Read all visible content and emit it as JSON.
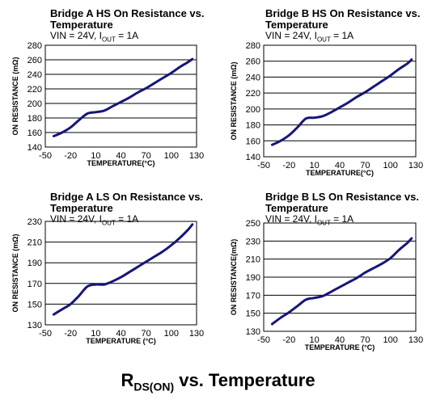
{
  "caption": {
    "main": "R",
    "sub": "DS(ON)",
    "rest": " vs. Temperature"
  },
  "condition": {
    "prefix": "VIN = 24V, I",
    "sub": "OUT",
    "suffix": " = 1A"
  },
  "colors": {
    "line": "#16167a",
    "grid": "#000000"
  },
  "chart_data": [
    {
      "type": "line",
      "title": "Bridge A HS On Resistance vs. Temperature",
      "title_lines": [
        "Bridge A HS On Resistance vs.",
        "Temperature"
      ],
      "xlabel": "TEMPERATURE(°C)",
      "ylabel": "ON RESISTANCE (mΩ)",
      "xlim": [
        -50,
        130
      ],
      "ylim": [
        140,
        280
      ],
      "xticks": [
        -50,
        -20,
        10,
        40,
        70,
        100,
        130
      ],
      "yticks": [
        140,
        160,
        180,
        200,
        220,
        240,
        260,
        280
      ],
      "grid": "horizontal",
      "x": [
        -40,
        -30,
        -20,
        -10,
        0,
        10,
        20,
        30,
        40,
        50,
        60,
        70,
        80,
        90,
        100,
        110,
        120,
        125
      ],
      "y": [
        155,
        160,
        167,
        177,
        186,
        188,
        190,
        196,
        202,
        208,
        215,
        221,
        228,
        235,
        242,
        250,
        257,
        261
      ]
    },
    {
      "type": "line",
      "title": "Bridge B HS On Resistance vs. Temperature",
      "title_lines": [
        "Bridge B HS On Resistance vs.",
        "Temperature"
      ],
      "xlabel": "TEMPERATURE(°C)",
      "ylabel": "ON RESISTANCE (mΩ)",
      "xlim": [
        -50,
        130
      ],
      "ylim": [
        140,
        280
      ],
      "xticks": [
        -50,
        -20,
        10,
        40,
        70,
        100,
        130
      ],
      "yticks": [
        140,
        160,
        180,
        200,
        220,
        240,
        260,
        280
      ],
      "grid": "horizontal",
      "x": [
        -40,
        -30,
        -20,
        -10,
        0,
        10,
        20,
        30,
        40,
        50,
        60,
        70,
        80,
        90,
        100,
        110,
        120,
        125
      ],
      "y": [
        155,
        160,
        167,
        177,
        188,
        189,
        191,
        196,
        202,
        208,
        215,
        221,
        228,
        235,
        242,
        250,
        257,
        262
      ]
    },
    {
      "type": "line",
      "title": "Bridge A LS On Resistance vs. Temperature",
      "title_lines": [
        "Bridge A LS On Resistance vs.",
        "Temperature"
      ],
      "xlabel": "TEMPERATURE (°C)",
      "ylabel": "ON RESISTANCE (mΩ)",
      "xlim": [
        -50,
        130
      ],
      "ylim": [
        130,
        230
      ],
      "xticks": [
        -50,
        -20,
        10,
        40,
        70,
        100,
        130
      ],
      "yticks": [
        130,
        150,
        170,
        190,
        210,
        230
      ],
      "grid": "horizontal",
      "x": [
        -40,
        -30,
        -20,
        -10,
        0,
        10,
        20,
        30,
        40,
        50,
        60,
        70,
        80,
        90,
        100,
        110,
        120,
        125
      ],
      "y": [
        140,
        145,
        150,
        158,
        167,
        169,
        169,
        172,
        176,
        181,
        186,
        191,
        196,
        201,
        207,
        214,
        222,
        227
      ]
    },
    {
      "type": "line",
      "title": "Bridge B LS On Resistance vs. Temperature",
      "title_lines": [
        "Bridge B LS On Resistance vs.",
        "Temperature"
      ],
      "xlabel": "TEMPERATURE (°C)",
      "ylabel": "ON RESISTANCE(mΩ)",
      "xlim": [
        -50,
        130
      ],
      "ylim": [
        130,
        250
      ],
      "xticks": [
        -50,
        -20,
        10,
        40,
        70,
        100,
        130
      ],
      "yticks": [
        130,
        150,
        170,
        190,
        210,
        230,
        250
      ],
      "grid": "horizontal",
      "x": [
        -40,
        -30,
        -20,
        -10,
        0,
        10,
        20,
        30,
        40,
        50,
        60,
        70,
        80,
        90,
        100,
        110,
        120,
        125
      ],
      "y": [
        138,
        145,
        151,
        158,
        165,
        167,
        169,
        174,
        179,
        184,
        189,
        195,
        200,
        205,
        211,
        220,
        228,
        233
      ]
    }
  ]
}
